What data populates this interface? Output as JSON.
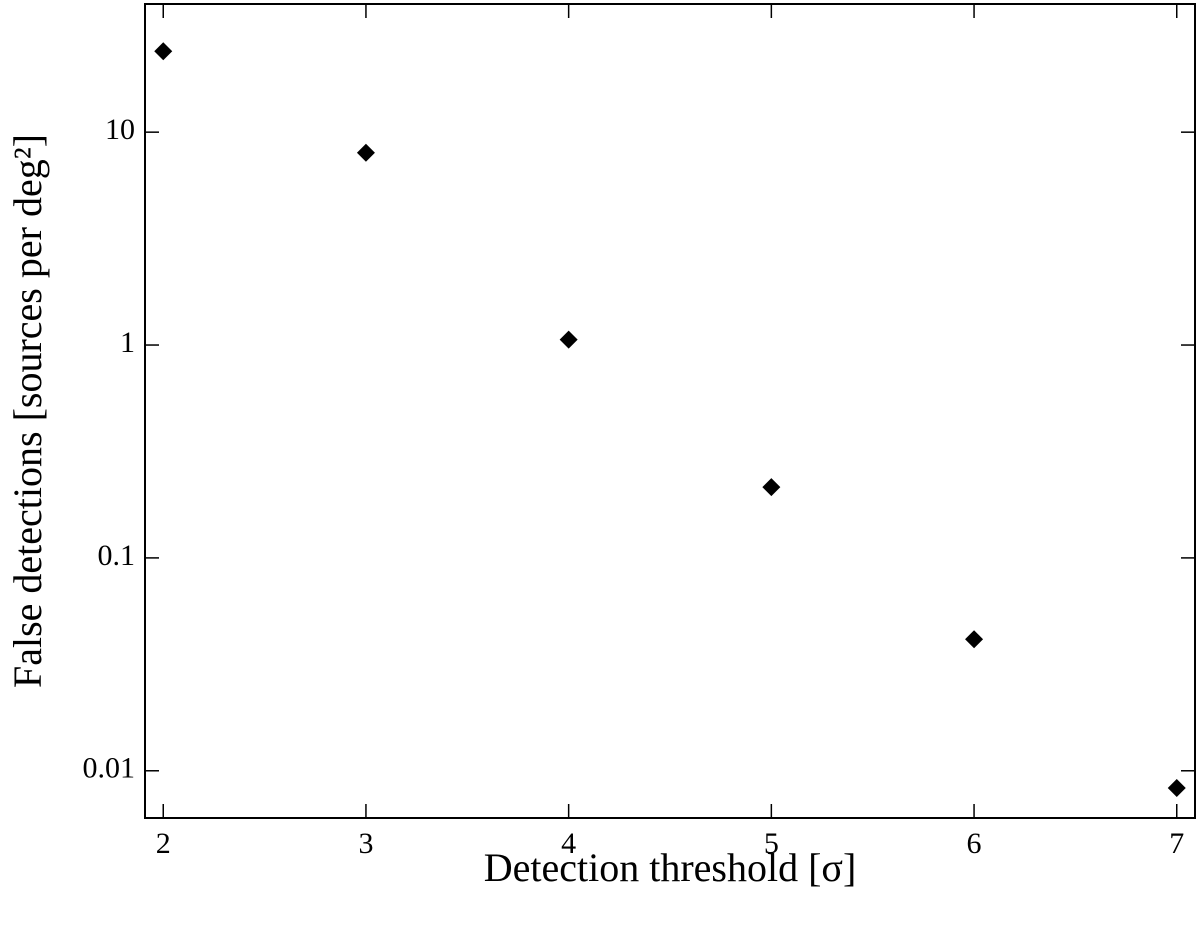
{
  "chart_data": {
    "type": "scatter",
    "xlabel": "Detection threshold [σ]",
    "ylabel": "False detections  [sources per deg²]",
    "x": [
      2,
      3,
      4,
      5,
      6,
      7
    ],
    "values": [
      24,
      8,
      1.06,
      0.215,
      0.0415,
      0.0083
    ],
    "color": "#000000",
    "marker": "diamond",
    "xlim": [
      1.91,
      7.09
    ],
    "ylim": [
      0.006,
      40
    ],
    "xticks": [
      2,
      3,
      4,
      5,
      6,
      7
    ],
    "yticks": [
      0.01,
      0.1,
      1,
      10
    ],
    "ylog": true
  }
}
